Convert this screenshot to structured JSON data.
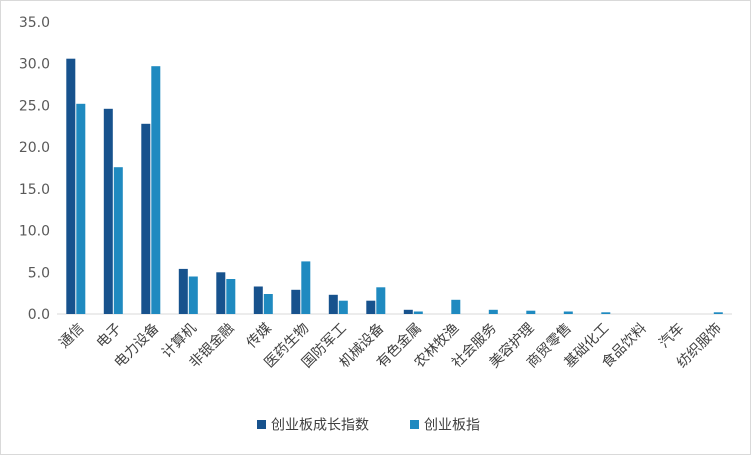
{
  "chart_data": {
    "type": "bar",
    "title": "",
    "xlabel": "",
    "ylabel": "",
    "ylim": [
      0,
      35
    ],
    "yticks": [
      "0.0",
      "5.0",
      "10.0",
      "15.0",
      "20.0",
      "25.0",
      "30.0",
      "35.0"
    ],
    "grid": false,
    "legend_position": "bottom",
    "categories": [
      "通信",
      "电子",
      "电力设备",
      "计算机",
      "非银金融",
      "传媒",
      "医药生物",
      "国防军工",
      "机械设备",
      "有色金属",
      "农林牧渔",
      "社会服务",
      "美容护理",
      "商贸零售",
      "基础化工",
      "食品饮料",
      "汽车",
      "纺织服饰"
    ],
    "series": [
      {
        "name": "创业板成长指数",
        "color": "#17528d",
        "values": [
          30.6,
          24.6,
          22.8,
          5.4,
          5.0,
          3.3,
          2.9,
          2.3,
          1.6,
          0.5,
          0.0,
          0.0,
          0.0,
          0.0,
          0.0,
          0.0,
          0.0,
          0.0
        ]
      },
      {
        "name": "创业板指",
        "color": "#1f8ac0",
        "values": [
          25.2,
          17.6,
          29.7,
          4.5,
          4.2,
          2.4,
          6.3,
          1.6,
          3.2,
          0.3,
          1.7,
          0.5,
          0.4,
          0.3,
          0.2,
          0.0,
          0.0,
          0.2
        ]
      }
    ]
  }
}
